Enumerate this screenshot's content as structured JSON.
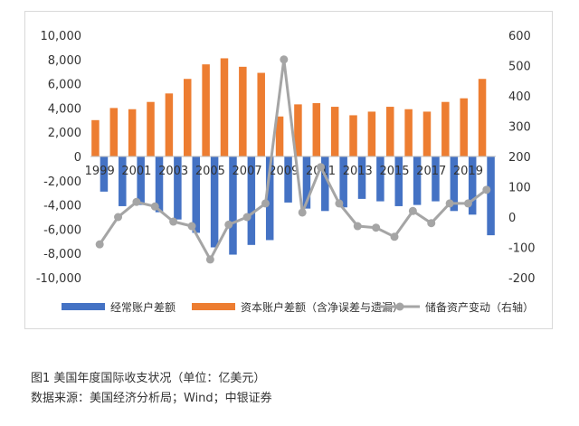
{
  "chart_data": {
    "type": "bar",
    "title": "",
    "categories": [
      "1999",
      "2000",
      "2001",
      "2002",
      "2003",
      "2004",
      "2005",
      "2006",
      "2007",
      "2008",
      "2009",
      "2010",
      "2011",
      "2012",
      "2013",
      "2014",
      "2015",
      "2016",
      "2017",
      "2018",
      "2019",
      "2020"
    ],
    "x_tick_labels": [
      "1999",
      "2001",
      "2003",
      "2005",
      "2007",
      "2009",
      "2011",
      "2013",
      "2015",
      "2017",
      "2019"
    ],
    "left_axis": {
      "ylim": [
        -10000,
        10000
      ],
      "step": 2000,
      "tick_labels": [
        "10,000",
        "8,000",
        "6,000",
        "4,000",
        "2,000",
        "0",
        "-2,000",
        "-4,000",
        "-6,000",
        "-8,000",
        "-10,000"
      ]
    },
    "right_axis": {
      "ylim": [
        -200,
        600
      ],
      "step": 100,
      "tick_labels": [
        "600",
        "500",
        "400",
        "300",
        "200",
        "100",
        "0",
        "-100",
        "-200"
      ]
    },
    "series": [
      {
        "name": "经常账户差额",
        "type": "bar",
        "axis": "left",
        "color": "#4472C4",
        "values": [
          -2900,
          -4100,
          -4000,
          -4600,
          -5200,
          -6300,
          -7500,
          -8100,
          -7300,
          -6900,
          -3800,
          -4300,
          -4500,
          -4200,
          -3500,
          -3700,
          -4100,
          -4000,
          -3700,
          -4500,
          -4800,
          -6500
        ]
      },
      {
        "name": "资本账户差额（含净误差与遗漏）",
        "type": "bar",
        "axis": "left",
        "color": "#ED7D31",
        "values": [
          3000,
          4000,
          3900,
          4500,
          5200,
          6400,
          7600,
          8100,
          7400,
          6900,
          3300,
          4300,
          4400,
          4100,
          3400,
          3700,
          4100,
          3900,
          3700,
          4500,
          4800,
          6400
        ]
      },
      {
        "name": "储备资产变动（右轴）",
        "type": "line",
        "axis": "right",
        "color": "#A5A5A5",
        "values": [
          -90,
          0,
          50,
          35,
          -15,
          -30,
          -140,
          -25,
          0,
          45,
          520,
          15,
          165,
          45,
          -30,
          -35,
          -65,
          20,
          -20,
          45,
          45,
          90
        ]
      }
    ]
  },
  "captions": {
    "line1": "图1  美国年度国际收支状况（单位：亿美元）",
    "line2": "数据来源：美国经济分析局；Wind；中银证券"
  }
}
